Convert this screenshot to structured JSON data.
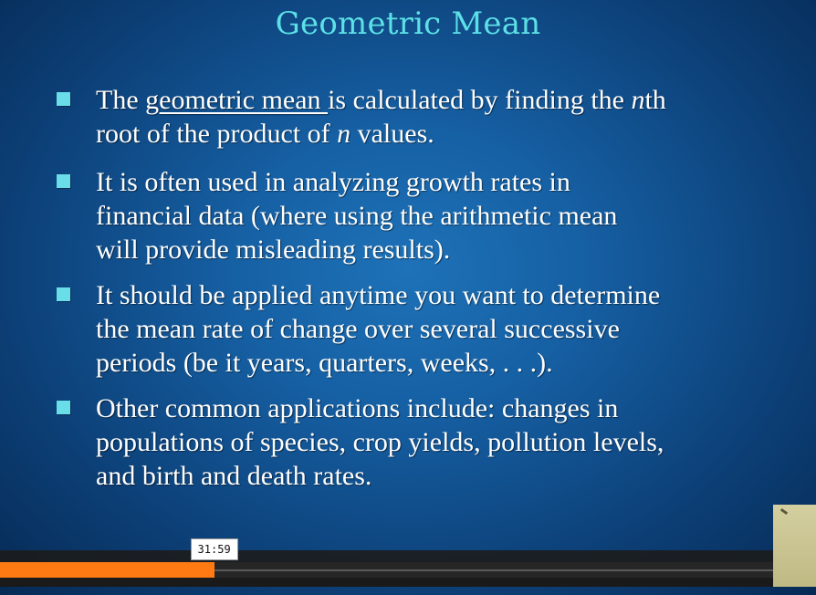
{
  "slide": {
    "title": "Geometric Mean",
    "bullets": [
      {
        "lines": [
          {
            "p1": "The ",
            "p2": "geometric mean ",
            "p3": "is calculated by finding the ",
            "p4": "n",
            "p5": "th"
          },
          {
            "p1": "root of the product of ",
            "p2": "n",
            "p3": " values."
          }
        ]
      },
      {
        "lines": [
          "It is often used in analyzing growth rates in",
          "financial data (where using the arithmetic mean",
          "will provide misleading results)."
        ]
      },
      {
        "lines": [
          "It should be applied anytime you want to determine",
          "the mean rate of change over several successive",
          "periods (be it years, quarters, weeks, . . .)."
        ]
      },
      {
        "lines": [
          "Other common applications include: changes in",
          "populations of species, crop yields, pollution levels,",
          "and birth and death rates."
        ]
      }
    ],
    "colors": {
      "title": "#5ce0e6",
      "bullet_marker": "#69dde8",
      "text": "#ffffff"
    }
  },
  "player": {
    "time_tooltip": "31:59",
    "progress": 0.277,
    "colors": {
      "progress": "#ff7a12"
    }
  }
}
